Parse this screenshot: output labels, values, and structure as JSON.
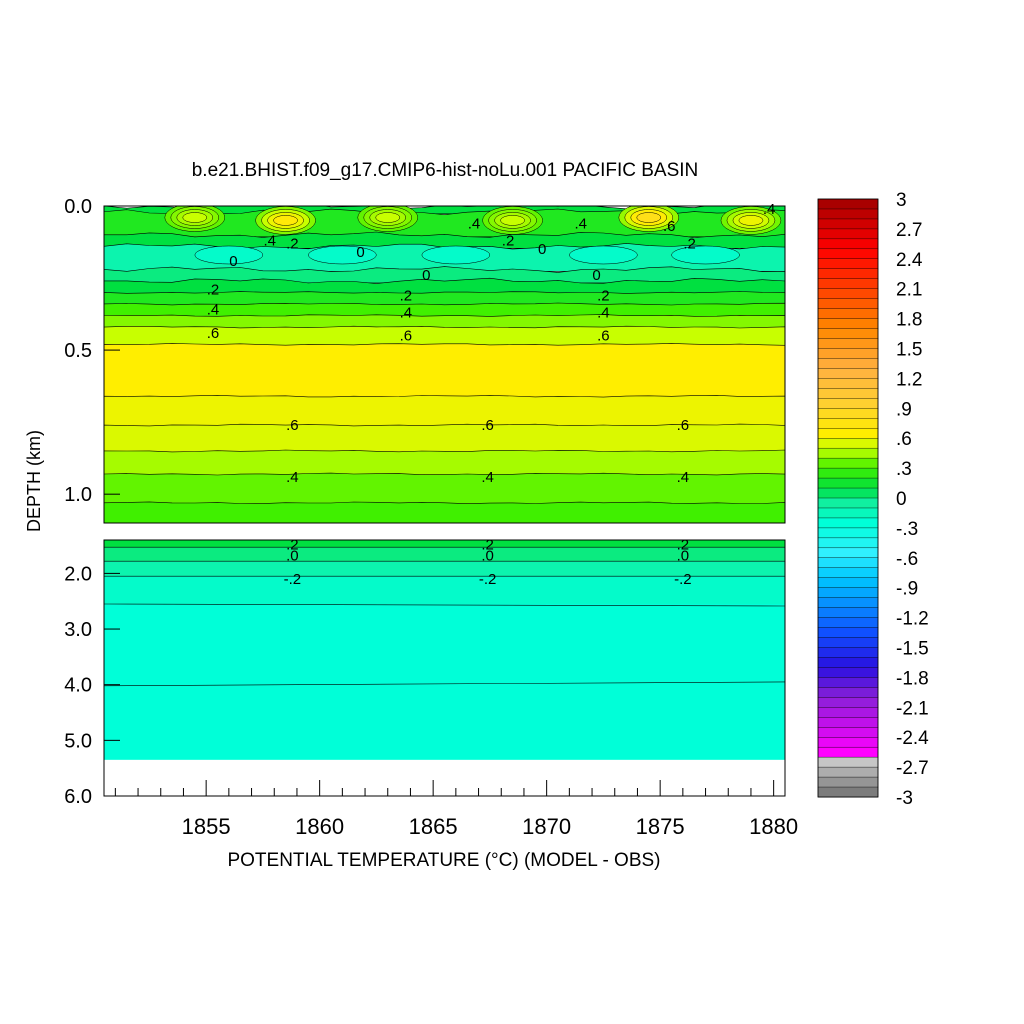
{
  "chart_data": {
    "type": "heatmap",
    "title": "b.e21.BHIST.f09_g17.CMIP6-hist-noLu.001 PACIFIC BASIN",
    "xlabel": "POTENTIAL TEMPERATURE (°C) (MODEL - OBS)",
    "ylabel": "DEPTH (km)",
    "xlim": [
      1850.5,
      1880.5
    ],
    "x_ticks": [
      "1855",
      "1860",
      "1865",
      "1870",
      "1875",
      "1880"
    ],
    "upper_panel": {
      "ylim": [
        0.0,
        1.1
      ],
      "y_ticks": [
        "0.0",
        "0.5",
        "1.0"
      ],
      "bands": [
        {
          "top": 0.0,
          "bottom": 0.02,
          "value": 0.1
        },
        {
          "top": 0.02,
          "bottom": 0.1,
          "value": 0.2
        },
        {
          "top": 0.1,
          "bottom": 0.14,
          "value": 0.1
        },
        {
          "top": 0.14,
          "bottom": 0.22,
          "value": -0.1
        },
        {
          "top": 0.22,
          "bottom": 0.26,
          "value": 0.0
        },
        {
          "top": 0.26,
          "bottom": 0.3,
          "value": 0.1
        },
        {
          "top": 0.3,
          "bottom": 0.34,
          "value": 0.2
        },
        {
          "top": 0.34,
          "bottom": 0.38,
          "value": 0.3
        },
        {
          "top": 0.38,
          "bottom": 0.42,
          "value": 0.4
        },
        {
          "top": 0.42,
          "bottom": 0.48,
          "value": 0.5
        },
        {
          "top": 0.48,
          "bottom": 0.66,
          "value": 0.65
        },
        {
          "top": 0.66,
          "bottom": 0.76,
          "value": 0.6
        },
        {
          "top": 0.76,
          "bottom": 0.85,
          "value": 0.55
        },
        {
          "top": 0.85,
          "bottom": 0.93,
          "value": 0.45
        },
        {
          "top": 0.93,
          "bottom": 1.03,
          "value": 0.35
        },
        {
          "top": 1.03,
          "bottom": 1.1,
          "value": 0.3
        }
      ],
      "warm_anomalies": [
        {
          "x": 1854.5,
          "depth": 0.04,
          "value": 0.5
        },
        {
          "x": 1858.5,
          "depth": 0.05,
          "value": 0.7
        },
        {
          "x": 1863.0,
          "depth": 0.04,
          "value": 0.5
        },
        {
          "x": 1868.5,
          "depth": 0.05,
          "value": 0.5
        },
        {
          "x": 1874.5,
          "depth": 0.04,
          "value": 0.8
        },
        {
          "x": 1879.0,
          "depth": 0.05,
          "value": 0.6
        }
      ],
      "contour_labels": [
        {
          "x": 1866.8,
          "depth": 0.06,
          "text": ".4"
        },
        {
          "x": 1871.5,
          "depth": 0.06,
          "text": ".4"
        },
        {
          "x": 1879.8,
          "depth": 0.01,
          "text": ".4"
        },
        {
          "x": 1857.8,
          "depth": 0.12,
          "text": ".4"
        },
        {
          "x": 1858.8,
          "depth": 0.13,
          "text": ".2"
        },
        {
          "x": 1868.3,
          "depth": 0.12,
          "text": ".2"
        },
        {
          "x": 1876.3,
          "depth": 0.13,
          "text": ".2"
        },
        {
          "x": 1875.4,
          "depth": 0.07,
          "text": ".6"
        },
        {
          "x": 1861.8,
          "depth": 0.16,
          "text": "0"
        },
        {
          "x": 1869.8,
          "depth": 0.15,
          "text": "0"
        },
        {
          "x": 1856.2,
          "depth": 0.19,
          "text": "0"
        },
        {
          "x": 1864.7,
          "depth": 0.24,
          "text": "0"
        },
        {
          "x": 1872.2,
          "depth": 0.24,
          "text": "0"
        },
        {
          "x": 1855.3,
          "depth": 0.29,
          "text": ".2"
        },
        {
          "x": 1863.8,
          "depth": 0.31,
          "text": ".2"
        },
        {
          "x": 1872.5,
          "depth": 0.31,
          "text": ".2"
        },
        {
          "x": 1855.3,
          "depth": 0.36,
          "text": ".4"
        },
        {
          "x": 1863.8,
          "depth": 0.37,
          "text": ".4"
        },
        {
          "x": 1872.5,
          "depth": 0.37,
          "text": ".4"
        },
        {
          "x": 1855.3,
          "depth": 0.44,
          "text": ".6"
        },
        {
          "x": 1863.8,
          "depth": 0.45,
          "text": ".6"
        },
        {
          "x": 1872.5,
          "depth": 0.45,
          "text": ".6"
        },
        {
          "x": 1858.8,
          "depth": 0.76,
          "text": ".6"
        },
        {
          "x": 1867.4,
          "depth": 0.76,
          "text": ".6"
        },
        {
          "x": 1876.0,
          "depth": 0.76,
          "text": ".6"
        },
        {
          "x": 1858.8,
          "depth": 0.94,
          "text": ".4"
        },
        {
          "x": 1867.4,
          "depth": 0.94,
          "text": ".4"
        },
        {
          "x": 1876.0,
          "depth": 0.94,
          "text": ".4"
        }
      ]
    },
    "lower_panel": {
      "ylim": [
        1.4,
        6.0
      ],
      "y_ticks": [
        "2.0",
        "3.0",
        "4.0",
        "5.0",
        "6.0"
      ],
      "data_bottom": 5.35,
      "bands": [
        {
          "top": 1.4,
          "bottom": 1.53,
          "value": 0.1
        },
        {
          "top": 1.53,
          "bottom": 1.78,
          "value": 0.0
        },
        {
          "top": 1.78,
          "bottom": 2.05,
          "value": -0.1
        },
        {
          "top": 2.05,
          "bottom": 2.55,
          "value": -0.2
        },
        {
          "top": 2.55,
          "bottom": 5.35,
          "value": -0.25
        }
      ],
      "contour_labels": [
        {
          "x": 1858.8,
          "depth": 1.48,
          "text": ".2"
        },
        {
          "x": 1867.4,
          "depth": 1.48,
          "text": ".2"
        },
        {
          "x": 1876.0,
          "depth": 1.48,
          "text": ".2"
        },
        {
          "x": 1858.8,
          "depth": 1.68,
          "text": ".0"
        },
        {
          "x": 1867.4,
          "depth": 1.68,
          "text": ".0"
        },
        {
          "x": 1876.0,
          "depth": 1.68,
          "text": ".0"
        },
        {
          "x": 1858.8,
          "depth": 2.1,
          "text": "-.2"
        },
        {
          "x": 1867.4,
          "depth": 2.1,
          "text": "-.2"
        },
        {
          "x": 1876.0,
          "depth": 2.1,
          "text": "-.2"
        }
      ]
    },
    "colorbar": {
      "min": -3,
      "max": 3,
      "labels": [
        "3",
        "2.7",
        "2.4",
        "2.1",
        "1.8",
        "1.5",
        "1.2",
        ".9",
        ".6",
        ".3",
        "0",
        "-.3",
        "-.6",
        "-.9",
        "-1.2",
        "-1.5",
        "-1.8",
        "-2.1",
        "-2.4",
        "-2.7",
        "-3"
      ],
      "anchors": [
        {
          "v": -3.0,
          "c": "#707070"
        },
        {
          "v": -2.6,
          "c": "#d2d2d2"
        },
        {
          "v": -2.55,
          "c": "#ff00ff"
        },
        {
          "v": -2.0,
          "c": "#8a20d8"
        },
        {
          "v": -1.7,
          "c": "#2a10e0"
        },
        {
          "v": -1.35,
          "c": "#1050ff"
        },
        {
          "v": -0.8,
          "c": "#00c8ff"
        },
        {
          "v": -0.55,
          "c": "#30f0ff"
        },
        {
          "v": -0.25,
          "c": "#00ffd8"
        },
        {
          "v": -0.05,
          "c": "#10f0a0"
        },
        {
          "v": 0.1,
          "c": "#00e040"
        },
        {
          "v": 0.3,
          "c": "#40f000"
        },
        {
          "v": 0.5,
          "c": "#c8ff00"
        },
        {
          "v": 0.65,
          "c": "#ffee00"
        },
        {
          "v": 0.95,
          "c": "#ffd030"
        },
        {
          "v": 1.3,
          "c": "#ffb040"
        },
        {
          "v": 1.7,
          "c": "#ff8800"
        },
        {
          "v": 2.1,
          "c": "#ff4000"
        },
        {
          "v": 2.5,
          "c": "#ff0000"
        },
        {
          "v": 3.0,
          "c": "#a00000"
        }
      ]
    }
  }
}
